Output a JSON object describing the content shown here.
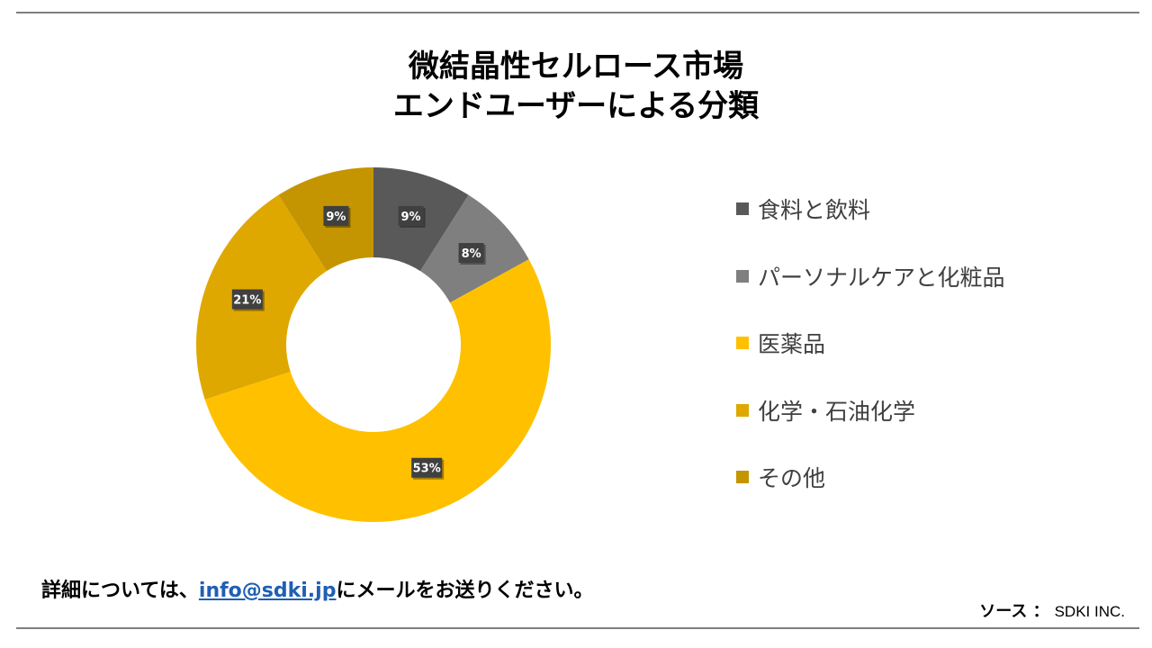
{
  "title": {
    "line1": "微結晶性セルロース市場",
    "line2": "エンドユーザーによる分類"
  },
  "chart_data": {
    "type": "pie",
    "donut": true,
    "legend_position": "right",
    "series": [
      {
        "name": "食料と飲料",
        "value": 9,
        "label": "9%",
        "color": "#595959"
      },
      {
        "name": "パーソナルケアと化粧品",
        "value": 8,
        "label": "8%",
        "color": "#7f7f7f"
      },
      {
        "name": "医薬品",
        "value": 53,
        "label": "53%",
        "color": "#ffc000"
      },
      {
        "name": "化学・石油化学",
        "value": 21,
        "label": "21%",
        "color": "#dfa800"
      },
      {
        "name": "その他",
        "value": 9,
        "label": "9%",
        "color": "#c49500"
      }
    ]
  },
  "footer": {
    "prefix": "詳細については、",
    "email": "info@sdki.jp",
    "suffix": "にメールをお送りください。"
  },
  "source": {
    "label": "ソース ：",
    "value": "SDKI INC."
  },
  "colors": {
    "rule": "#7f7f7f",
    "link": "#1f5fb4",
    "label_box": "#404040"
  }
}
